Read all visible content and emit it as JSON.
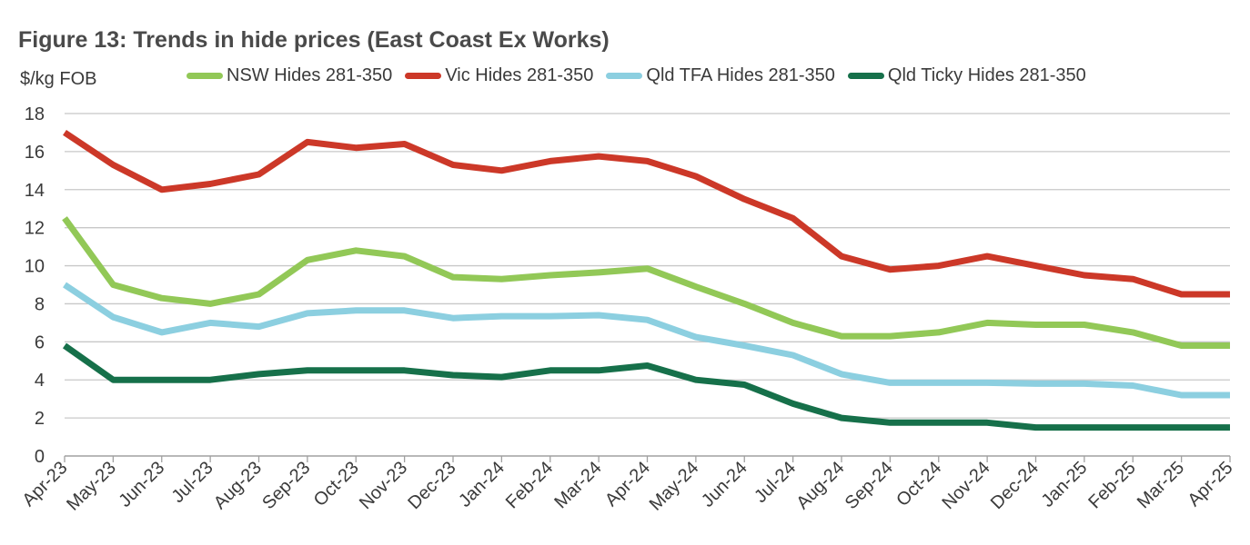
{
  "figure_title": "Figure 13: Trends in hide prices (East Coast Ex Works)",
  "chart_data": {
    "type": "line",
    "title": "Figure 13: Trends in hide prices (East Coast Ex Works)",
    "ylabel": "$/kg FOB",
    "xlabel": "",
    "ylim": [
      0,
      18
    ],
    "yticks": [
      0,
      2,
      4,
      6,
      8,
      10,
      12,
      14,
      16,
      18
    ],
    "grid": true,
    "legend_position": "top",
    "categories": [
      "Apr-23",
      "May-23",
      "Jun-23",
      "Jul-23",
      "Aug-23",
      "Sep-23",
      "Oct-23",
      "Nov-23",
      "Dec-23",
      "Jan-24",
      "Feb-24",
      "Mar-24",
      "Apr-24",
      "May-24",
      "Jun-24",
      "Jul-24",
      "Aug-24",
      "Sep-24",
      "Oct-24",
      "Nov-24",
      "Dec-24",
      "Jan-25",
      "Feb-25",
      "Mar-25",
      "Apr-25"
    ],
    "series": [
      {
        "name": "NSW Hides 281-350",
        "color": "#92c857",
        "values": [
          12.5,
          9.0,
          8.3,
          8.0,
          8.5,
          10.3,
          10.8,
          10.5,
          9.4,
          9.3,
          9.5,
          9.65,
          9.85,
          8.9,
          8.0,
          7.0,
          6.3,
          6.3,
          6.5,
          7.0,
          6.9,
          6.9,
          6.5,
          5.8,
          5.8
        ]
      },
      {
        "name": "Vic Hides 281-350",
        "color": "#cc3828",
        "values": [
          17.0,
          15.3,
          14.0,
          14.3,
          14.8,
          16.5,
          16.2,
          16.4,
          15.3,
          15.0,
          15.5,
          15.75,
          15.5,
          14.7,
          13.5,
          12.5,
          10.5,
          9.8,
          10.0,
          10.5,
          10.0,
          9.5,
          9.3,
          8.5,
          8.5
        ]
      },
      {
        "name": "Qld TFA Hides 281-350",
        "color": "#8ccfe0",
        "values": [
          9.0,
          7.3,
          6.5,
          7.0,
          6.8,
          7.5,
          7.65,
          7.65,
          7.25,
          7.35,
          7.35,
          7.4,
          7.15,
          6.25,
          5.8,
          5.3,
          4.3,
          3.85,
          3.85,
          3.85,
          3.8,
          3.8,
          3.7,
          3.2,
          3.2
        ]
      },
      {
        "name": "Qld Ticky Hides 281-350",
        "color": "#16704a",
        "values": [
          5.8,
          4.0,
          4.0,
          4.0,
          4.3,
          4.5,
          4.5,
          4.5,
          4.25,
          4.15,
          4.5,
          4.5,
          4.75,
          4.0,
          3.75,
          2.75,
          2.0,
          1.75,
          1.75,
          1.75,
          1.5,
          1.5,
          1.5,
          1.5,
          1.5
        ]
      }
    ]
  }
}
